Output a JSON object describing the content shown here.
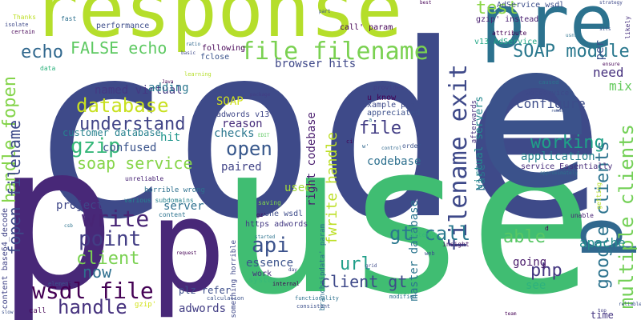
{
  "words": [
    {
      "id": "code",
      "text": "code",
      "color": "#3e4a89"
    },
    {
      "id": "use",
      "text": "use",
      "color": "#40bd72"
    },
    {
      "id": "p",
      "text": "p",
      "color": "#482878"
    },
    {
      "id": "pre",
      "text": "pre",
      "color": "#2c728e"
    },
    {
      "id": "response",
      "text": "response",
      "color": "#b5de2b"
    },
    {
      "id": "e",
      "text": "e",
      "color": "#3b528b"
    },
    {
      "id": "p2",
      "text": "p",
      "color": "#31688e"
    },
    {
      "id": "file_filename",
      "text": "file filename",
      "color": "#7ad151"
    },
    {
      "id": "filename_exit",
      "text": "filename exit",
      "color": "#3e4989"
    },
    {
      "id": "echo",
      "text": "echo",
      "color": "#31688e"
    },
    {
      "id": "false_echo",
      "text": "FALSE echo",
      "color": "#5ec962"
    },
    {
      "id": "soap_module",
      "text": "SOAP module",
      "color": "#2a788e"
    },
    {
      "id": "database",
      "text": "database",
      "color": "#c8e020"
    },
    {
      "id": "understand",
      "text": "understand",
      "color": "#414487"
    },
    {
      "id": "gzip",
      "text": "gzip",
      "color": "#35b779"
    },
    {
      "id": "soap_service",
      "text": "soap service",
      "color": "#86d549"
    },
    {
      "id": "open",
      "text": "open",
      "color": "#38588c"
    },
    {
      "id": "write",
      "text": "write",
      "color": "#482575"
    },
    {
      "id": "point",
      "text": "point",
      "color": "#433e85"
    },
    {
      "id": "client",
      "text": "client",
      "color": "#7ad151"
    },
    {
      "id": "now",
      "text": "now",
      "color": "#2e6f8e"
    },
    {
      "id": "wsdl_file",
      "text": "wsdl file",
      "color": "#440154"
    },
    {
      "id": "handle",
      "text": "handle",
      "color": "#46327e"
    },
    {
      "id": "api",
      "text": "api",
      "color": "#3b528b"
    },
    {
      "id": "client_gt",
      "text": "client gt",
      "color": "#3e4989"
    },
    {
      "id": "url",
      "text": "url",
      "color": "#1f9e89"
    },
    {
      "id": "file",
      "text": "file",
      "color": "#433e85"
    },
    {
      "id": "working",
      "text": "working",
      "color": "#1fa188"
    },
    {
      "id": "able",
      "text": "able",
      "color": "#58c765"
    },
    {
      "id": "php",
      "text": "php",
      "color": "#453781"
    },
    {
      "id": "gt_call",
      "text": "gt call",
      "color": "#2a788e"
    },
    {
      "id": "multiple_clients",
      "text": "multiple clients",
      "color": "#73d056"
    },
    {
      "id": "google_clients",
      "text": "google clients",
      "color": "#2c738e"
    },
    {
      "id": "handle_fopen",
      "text": "handle fopen",
      "color": "#84d44b"
    },
    {
      "id": "fopen_filename",
      "text": "fopen filename",
      "color": "#3e4a89"
    },
    {
      "id": "fwrite_handle",
      "text": "fwrite handle",
      "color": "#bddf26"
    },
    {
      "id": "test",
      "text": "test",
      "color": "#8bd646"
    },
    {
      "id": "need",
      "text": "need",
      "color": "#46307e"
    },
    {
      "id": "mix",
      "text": "mix",
      "color": "#65cb5e"
    },
    {
      "id": "configure",
      "text": "configure",
      "color": "#3d4d8a"
    },
    {
      "id": "application",
      "text": "application",
      "color": "#25848e"
    },
    {
      "id": "apache",
      "text": "apache",
      "color": "#228d8d"
    },
    {
      "id": "going",
      "text": "going",
      "color": "#48186a"
    },
    {
      "id": "see",
      "text": "see",
      "color": "#2db27d"
    },
    {
      "id": "time",
      "text": "time",
      "color": "#453581"
    },
    {
      "id": "browser_hits",
      "text": "browser hits",
      "color": "#3f4889"
    },
    {
      "id": "named_virtual",
      "text": "named virtual",
      "color": "#443983"
    },
    {
      "id": "soap",
      "text": "SOAP",
      "color": "#d0e11c"
    },
    {
      "id": "reason",
      "text": "reason",
      "color": "#472d7b"
    },
    {
      "id": "checks",
      "text": "checks",
      "color": "#2a768e"
    },
    {
      "id": "paired",
      "text": "paired",
      "color": "#414487"
    },
    {
      "id": "confused",
      "text": "confused",
      "color": "#3a538b"
    },
    {
      "id": "hit",
      "text": "hit",
      "color": "#1f968b"
    },
    {
      "id": "customer_database",
      "text": "customer database",
      "color": "#26818e"
    },
    {
      "id": "adding",
      "text": "adding",
      "color": "#2a778e"
    },
    {
      "id": "codebase",
      "text": "codebase",
      "color": "#2d708e"
    },
    {
      "id": "used",
      "text": "used",
      "color": "#a2da37"
    },
    {
      "id": "project",
      "text": "project",
      "color": "#3f4788"
    },
    {
      "id": "server",
      "text": "server",
      "color": "#2d708e"
    },
    {
      "id": "essence",
      "text": "essence",
      "color": "#3b528b"
    },
    {
      "id": "adwords",
      "text": "adwords",
      "color": "#433e85"
    },
    {
      "id": "plz_refer",
      "text": "plz refer",
      "color": "#3d4e8a"
    },
    {
      "id": "master_database",
      "text": "master database",
      "color": "#2b758e"
    },
    {
      "id": "right_codebase",
      "text": "right codebase",
      "color": "#481b6d"
    },
    {
      "id": "virtual_servers",
      "text": "virtual servers",
      "color": "#23898e"
    },
    {
      "id": "per",
      "text": "per",
      "color": "#3b528b"
    },
    {
      "id": "base",
      "text": "base",
      "color": "#2d718e"
    },
    {
      "id": "service_essentially",
      "text": "service Essentially",
      "color": "#472c7a"
    },
    {
      "id": "https_adwords",
      "text": "https adwords",
      "color": "#443a83"
    },
    {
      "id": "one_wsdl",
      "text": "one wsdl",
      "color": "#3e4c8a"
    },
    {
      "id": "work",
      "text": "work",
      "color": "#46307e"
    },
    {
      "id": "system",
      "text": "system",
      "color": "#38b977"
    },
    {
      "id": "content_base64",
      "text": "content base64_decode",
      "color": "#414487"
    },
    {
      "id": "adwords_v13",
      "text": "adwords v13",
      "color": "#3f4788"
    },
    {
      "id": "performance",
      "text": "performance",
      "color": "#3d4d8a"
    },
    {
      "id": "following",
      "text": "following",
      "color": "#440154"
    },
    {
      "id": "fclose",
      "text": "fclose",
      "color": "#3a538b"
    },
    {
      "id": "gzip_instead",
      "text": "gzip' instead",
      "color": "#481f70"
    },
    {
      "id": "adservice_wsdl",
      "text": "AdService wsdl",
      "color": "#3d4e8a"
    },
    {
      "id": "v13_adservice",
      "text": "v13 AdService",
      "color": "#21a685"
    },
    {
      "id": "call_param",
      "text": "call' param",
      "color": "#440154"
    },
    {
      "id": "example_plz",
      "text": "example plz",
      "color": "#3e4a89"
    },
    {
      "id": "u_know",
      "text": "u know",
      "color": "#440154"
    },
    {
      "id": "appreciated",
      "text": "appreciated",
      "color": "#3c508b"
    },
    {
      "id": "provides",
      "text": "provides",
      "color": "#433e85"
    },
    {
      "id": "webservice",
      "text": "webservice",
      "color": "#3e4989"
    },
    {
      "id": "caused",
      "text": "caused",
      "color": "#2c728e"
    },
    {
      "id": "afterwards",
      "text": "afterwards",
      "color": "#46307e"
    },
    {
      "id": "order",
      "text": "order",
      "color": "#3b528b"
    },
    {
      "id": "attempt",
      "text": "attempt",
      "color": "#35b779"
    },
    {
      "id": "insight",
      "text": "insight",
      "color": "#481668"
    },
    {
      "id": "unable",
      "text": "unable",
      "color": "#482475"
    },
    {
      "id": "getting",
      "text": "getting",
      "color": "#b8de29"
    },
    {
      "id": "approximately",
      "text": "approximately",
      "color": "#2e6e8e"
    },
    {
      "id": "horrible_wrong",
      "text": "horrible wrong",
      "color": "#2d708e"
    },
    {
      "id": "various_subdomains",
      "text": "various subdomains",
      "color": "#26828e"
    },
    {
      "id": "unreliable",
      "text": "unreliable",
      "color": "#482475"
    },
    {
      "id": "saving",
      "text": "saving",
      "color": "#7fd34e"
    },
    {
      "id": "content",
      "text": "content",
      "color": "#2c738e"
    },
    {
      "id": "something_horrible",
      "text": "something horrible",
      "color": "#3f4889"
    },
    {
      "id": "branchzipdata",
      "text": "branchzipdata' param",
      "color": "#2d708e"
    },
    {
      "id": "calculation",
      "text": "calculation",
      "color": "#3b528b"
    },
    {
      "id": "functionality",
      "text": "functionality",
      "color": "#2d708e"
    },
    {
      "id": "consistent",
      "text": "consistent",
      "color": "#3c508b"
    },
    {
      "id": "modified",
      "text": "modified",
      "color": "#2e6f8e"
    },
    {
      "id": "internal",
      "text": "internal",
      "color": "#440154"
    },
    {
      "id": "element",
      "text": "element",
      "color": "#3b528b"
    },
    {
      "id": "call",
      "text": "call",
      "color": "#440154"
    },
    {
      "id": "gzip_q",
      "text": "gzip'",
      "color": "#d2e21b"
    },
    {
      "id": "thanks",
      "text": "Thanks",
      "color": "#bddf26"
    },
    {
      "id": "isolate",
      "text": "isolate",
      "color": "#3e4989"
    },
    {
      "id": "certain",
      "text": "certain",
      "color": "#440154"
    },
    {
      "id": "fast",
      "text": "fast",
      "color": "#2d708e"
    },
    {
      "id": "data",
      "text": "data",
      "color": "#2db27d"
    },
    {
      "id": "learning",
      "text": "learning",
      "color": "#b5de2b"
    },
    {
      "id": "java",
      "text": "Java",
      "color": "#440154"
    },
    {
      "id": "ratio",
      "text": "ratio",
      "color": "#31688e"
    },
    {
      "id": "basic",
      "text": "basic",
      "color": "#3e4a89"
    },
    {
      "id": "package",
      "text": "package",
      "color": "#433e85"
    },
    {
      "id": "part",
      "text": "part",
      "color": "#3b528b"
    },
    {
      "id": "best",
      "text": "best",
      "color": "#440154"
    },
    {
      "id": "strategy",
      "text": "strategy",
      "color": "#3e4989"
    },
    {
      "id": "likely",
      "text": "likely",
      "color": "#46307e"
    },
    {
      "id": "sits",
      "text": "sits",
      "color": "#3b528b"
    },
    {
      "id": "usns",
      "text": "usns",
      "color": "#2c728e"
    },
    {
      "id": "ensure",
      "text": "ensure",
      "color": "#440154"
    },
    {
      "id": "reads",
      "text": "reads",
      "color": "#3b528b"
    },
    {
      "id": "request",
      "text": "request",
      "color": "#440154"
    },
    {
      "id": "grid",
      "text": "grid",
      "color": "#3e4989"
    },
    {
      "id": "top",
      "text": "top",
      "color": "#433e85"
    },
    {
      "id": "reliable",
      "text": "reliable",
      "color": "#3b528b"
    },
    {
      "id": "team",
      "text": "team",
      "color": "#440154"
    },
    {
      "id": "web",
      "text": "web",
      "color": "#3b528b"
    },
    {
      "id": "edit",
      "text": "EDIT",
      "color": "#5ec962"
    },
    {
      "id": "a",
      "text": "a",
      "color": "#2c728e"
    },
    {
      "id": "ci",
      "text": "ci",
      "color": "#440154"
    },
    {
      "id": "wp",
      "text": "w'",
      "color": "#31688e"
    },
    {
      "id": "gz",
      "text": "gz'",
      "color": "#440154"
    },
    {
      "id": "control",
      "text": "control",
      "color": "#31688e"
    },
    {
      "id": "attribute",
      "text": "attribute",
      "color": "#440154"
    },
    {
      "id": "started",
      "text": "started",
      "color": "#2c728e"
    },
    {
      "id": "day",
      "text": "day",
      "color": "#3e4a89"
    },
    {
      "id": "slow",
      "text": "slow",
      "color": "#3b528b"
    },
    {
      "id": "csb",
      "text": "csb",
      "color": "#2c728e"
    },
    {
      "id": "d",
      "text": "d",
      "color": "#440154"
    }
  ]
}
